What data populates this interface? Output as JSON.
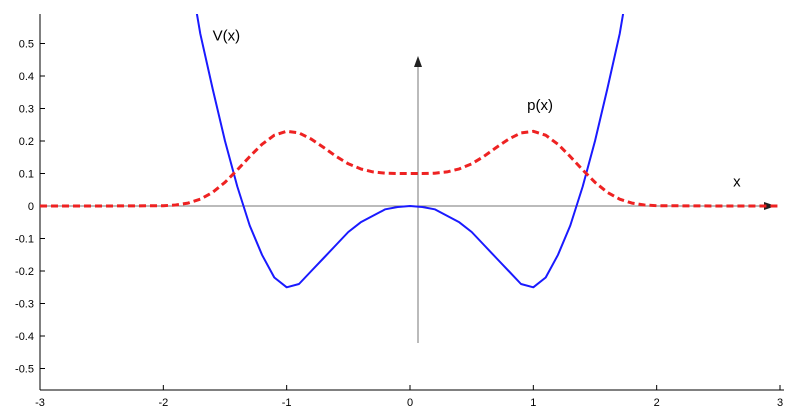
{
  "chart_data": {
    "type": "line",
    "title": "",
    "xlabel": "",
    "ylabel": "",
    "xlim": [
      -3,
      3
    ],
    "ylim": [
      -0.6,
      0.6
    ],
    "grid": false,
    "legend": "none",
    "x_ticks": [
      "-3",
      "-2",
      "-1",
      "0",
      "1",
      "2",
      "3"
    ],
    "y_ticks": [
      "0.5",
      "0.4",
      "0.3",
      "0.2",
      "0.1",
      "0",
      "-0.1",
      "-0.2",
      "-0.3",
      "-0.4",
      "-0.5"
    ],
    "series": [
      {
        "name": "V(x)",
        "color": "#1a1aff",
        "style": "solid",
        "x": [
          -1.75,
          -1.7,
          -1.6,
          -1.5,
          -1.4,
          -1.3,
          -1.2,
          -1.1,
          -1.0,
          -0.9,
          -0.8,
          -0.7,
          -0.6,
          -0.5,
          -0.4,
          -0.3,
          -0.2,
          -0.1,
          0.0,
          0.1,
          0.2,
          0.3,
          0.4,
          0.5,
          0.6,
          0.7,
          0.8,
          0.9,
          1.0,
          1.1,
          1.2,
          1.3,
          1.4,
          1.5,
          1.6,
          1.7,
          1.75
        ],
        "y": [
          0.64,
          0.53,
          0.36,
          0.2,
          0.06,
          -0.06,
          -0.15,
          -0.22,
          -0.25,
          -0.24,
          -0.2,
          -0.16,
          -0.12,
          -0.08,
          -0.05,
          -0.03,
          -0.01,
          -0.003,
          0.0,
          -0.003,
          -0.01,
          -0.03,
          -0.05,
          -0.08,
          -0.12,
          -0.16,
          -0.2,
          -0.24,
          -0.25,
          -0.22,
          -0.15,
          -0.06,
          0.06,
          0.2,
          0.36,
          0.53,
          0.64
        ]
      },
      {
        "name": "p(x)",
        "color": "#ee2222",
        "style": "dashed",
        "x": [
          -3.0,
          -2.5,
          -2.0,
          -1.9,
          -1.8,
          -1.7,
          -1.6,
          -1.5,
          -1.4,
          -1.3,
          -1.2,
          -1.1,
          -1.0,
          -0.9,
          -0.8,
          -0.7,
          -0.6,
          -0.5,
          -0.4,
          -0.3,
          -0.2,
          -0.1,
          0.0,
          0.1,
          0.2,
          0.3,
          0.4,
          0.5,
          0.6,
          0.7,
          0.8,
          0.9,
          1.0,
          1.1,
          1.2,
          1.3,
          1.4,
          1.5,
          1.6,
          1.7,
          1.8,
          1.9,
          2.0,
          2.5,
          3.0
        ],
        "y": [
          0.0,
          0.0,
          0.001,
          0.003,
          0.009,
          0.021,
          0.042,
          0.073,
          0.111,
          0.152,
          0.19,
          0.218,
          0.23,
          0.225,
          0.206,
          0.18,
          0.153,
          0.13,
          0.114,
          0.105,
          0.101,
          0.1,
          0.1,
          0.1,
          0.101,
          0.105,
          0.114,
          0.13,
          0.153,
          0.18,
          0.206,
          0.225,
          0.23,
          0.218,
          0.19,
          0.152,
          0.111,
          0.073,
          0.042,
          0.021,
          0.009,
          0.003,
          0.001,
          0.0,
          0.0
        ]
      }
    ],
    "annotations": [
      {
        "text": "V(x)",
        "x": -1.6,
        "y": 0.51
      },
      {
        "text": "p(x)",
        "x": 0.95,
        "y": 0.295
      },
      {
        "text": "x",
        "x": 2.62,
        "y": 0.06
      }
    ]
  }
}
